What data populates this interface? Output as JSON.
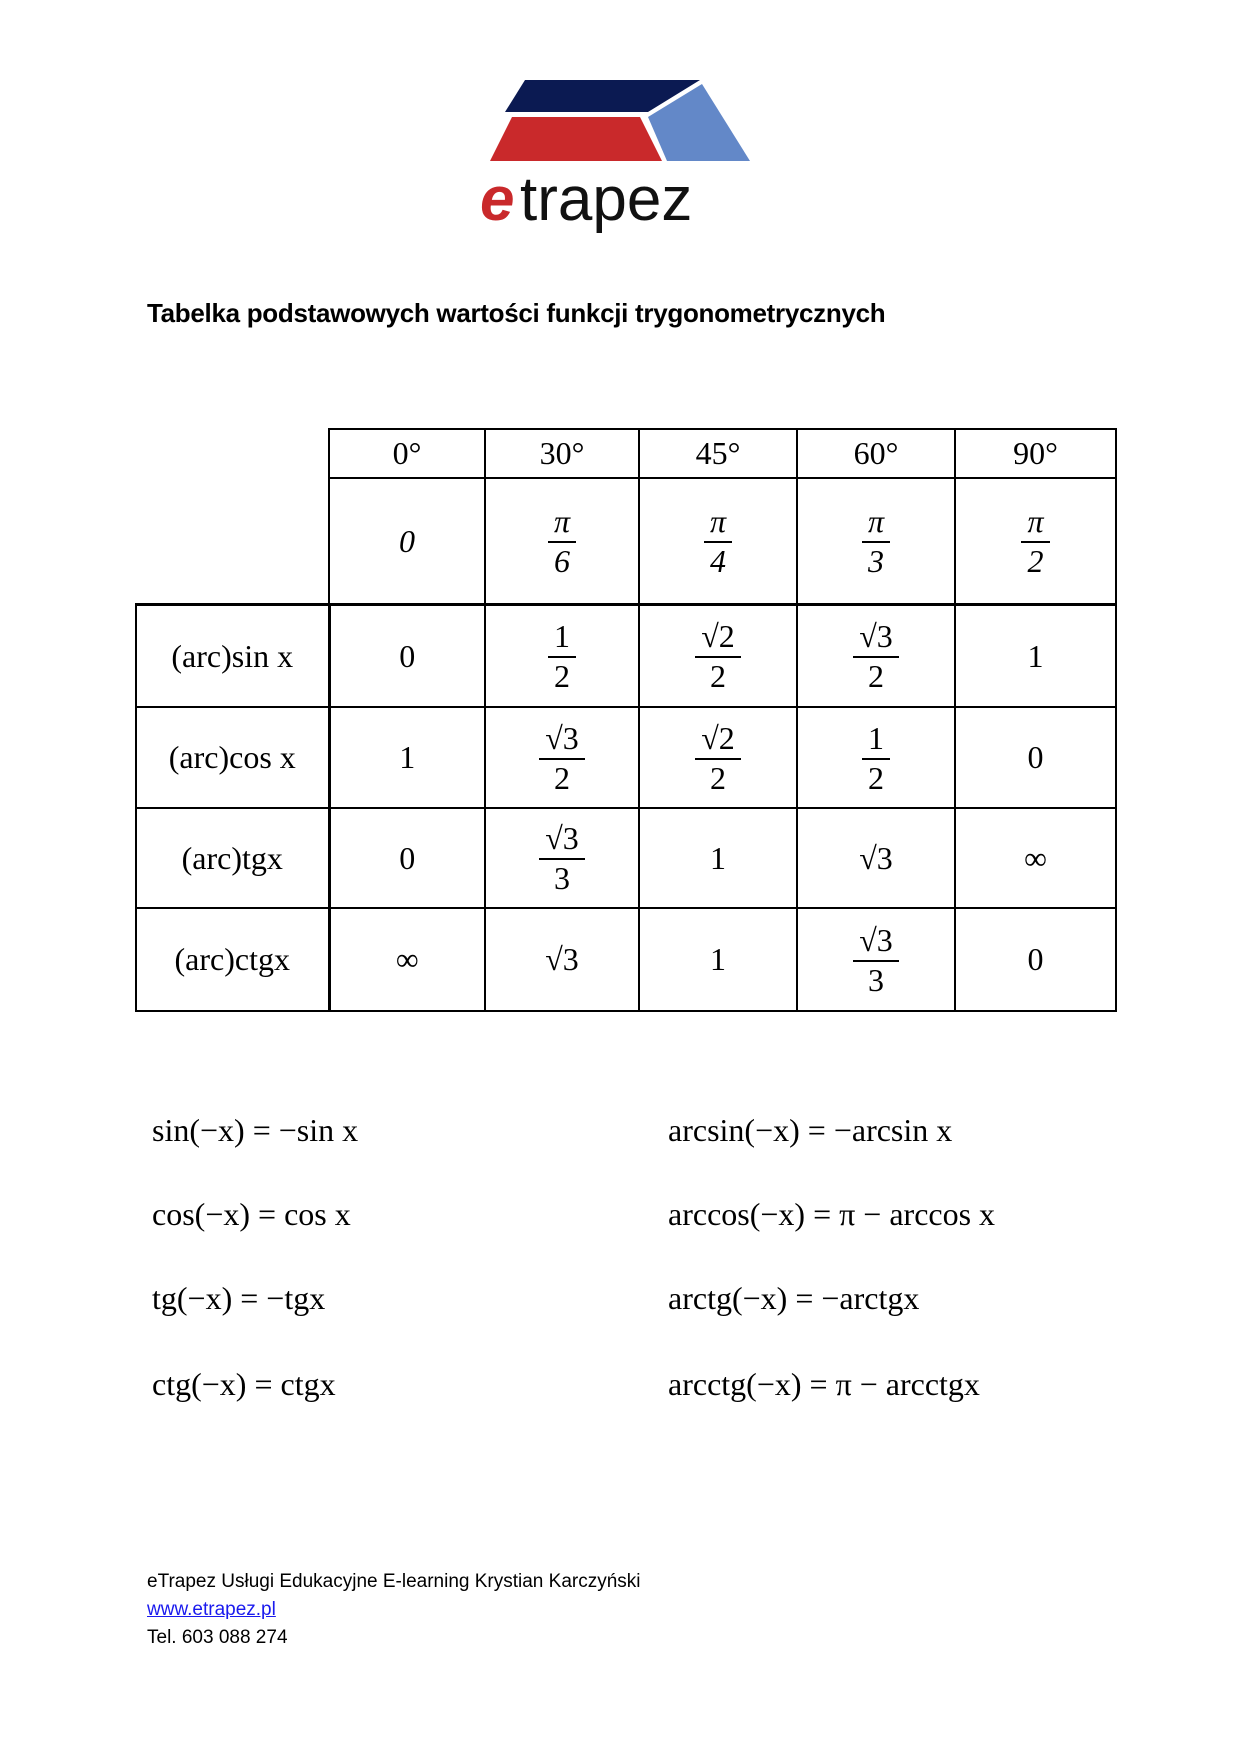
{
  "logo": {
    "text_e": "e",
    "text_rest": "trapez",
    "colors": {
      "navy": "#0b1a52",
      "red": "#c9292b",
      "blue": "#6388c8"
    }
  },
  "title": "Tabelka podstawowych wartości funkcji trygonometrycznych",
  "table": {
    "degrees": [
      "0°",
      "30°",
      "45°",
      "60°",
      "90°"
    ],
    "radians": [
      {
        "v": "0"
      },
      {
        "num": "π",
        "den": "6"
      },
      {
        "num": "π",
        "den": "4"
      },
      {
        "num": "π",
        "den": "3"
      },
      {
        "num": "π",
        "den": "2"
      }
    ],
    "rows": [
      {
        "label": "(arc)sin x",
        "values": [
          {
            "v": "0"
          },
          {
            "num": "1",
            "den": "2"
          },
          {
            "num": "√2",
            "den": "2"
          },
          {
            "num": "√3",
            "den": "2"
          },
          {
            "v": "1"
          }
        ]
      },
      {
        "label": "(arc)cos x",
        "values": [
          {
            "v": "1"
          },
          {
            "num": "√3",
            "den": "2"
          },
          {
            "num": "√2",
            "den": "2"
          },
          {
            "num": "1",
            "den": "2"
          },
          {
            "v": "0"
          }
        ]
      },
      {
        "label": "(arc)tgx",
        "values": [
          {
            "v": "0"
          },
          {
            "num": "√3",
            "den": "3"
          },
          {
            "v": "1"
          },
          {
            "v": "√3"
          },
          {
            "v": "∞"
          }
        ]
      },
      {
        "label": "(arc)ctgx",
        "values": [
          {
            "v": "∞"
          },
          {
            "v": "√3"
          },
          {
            "v": "1"
          },
          {
            "num": "√3",
            "den": "3"
          },
          {
            "v": "0"
          }
        ]
      }
    ]
  },
  "identities": {
    "left": [
      "sin(−x) = −sin x",
      "cos(−x) = cos x",
      "tg(−x) = −tgx",
      "ctg(−x) = ctgx"
    ],
    "right": [
      "arcsin(−x) = −arcsin x",
      "arccos(−x) = π − arccos x",
      "arctg(−x) = −arctgx",
      "arcctg(−x) = π − arcctgx"
    ]
  },
  "footer": {
    "company": "eTrapez Usługi Edukacyjne E-learning Krystian Karczyński",
    "website": "www.etrapez.pl",
    "phone": "Tel. 603 088 274"
  }
}
